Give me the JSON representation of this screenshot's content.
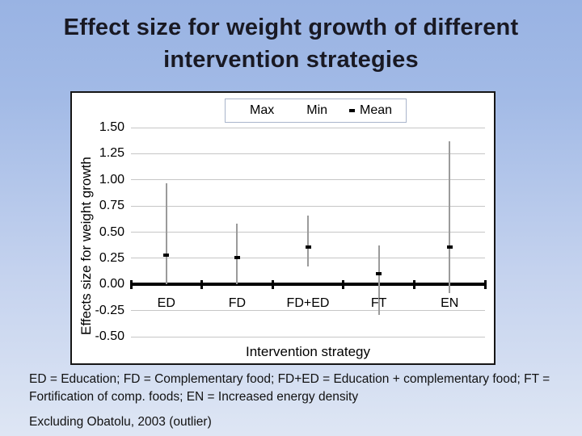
{
  "slide": {
    "title": "Effect size for weight growth of different intervention strategies",
    "footnote_abbreviations": "ED = Education; FD = Complementary food; FD+ED = Education + complementary food; FT = Fortification of comp. foods; EN = Increased energy density",
    "footnote_exclusion": "Excluding Obatolu, 2003 (outlier)"
  },
  "colors": {
    "slide_background_top": "#99b3e3",
    "slide_background_bottom": "#dee6f4",
    "title_text": "#191923",
    "chart_background": "#ffffff",
    "chart_border": "#161616",
    "gridline": "#c6c6c6",
    "hilo_line": "#9b9b9b",
    "axis_and_text": "#000000"
  },
  "chart_data": {
    "type": "hilo-range",
    "categories": [
      "ED",
      "FD",
      "FD+ED",
      "FT",
      "EN"
    ],
    "series": [
      {
        "name": "Max",
        "values": [
          0.97,
          0.58,
          0.66,
          0.37,
          1.37
        ]
      },
      {
        "name": "Min",
        "values": [
          0.0,
          0.0,
          0.17,
          -0.29,
          -0.08
        ]
      },
      {
        "name": "Mean",
        "values": [
          0.28,
          0.26,
          0.36,
          0.1,
          0.36
        ]
      }
    ],
    "xlabel": "Intervention strategy",
    "ylabel": "Effects size for weight growth",
    "ylim": [
      -0.5,
      1.5
    ],
    "ytick_step": 0.25,
    "ytick_labels": [
      "1.50",
      "1.25",
      "1.00",
      "0.75",
      "0.50",
      "0.25",
      "0.00",
      "-0.25",
      "-0.50"
    ],
    "grid": true,
    "legend": {
      "position": "top-center",
      "entries": [
        {
          "label": "Max",
          "marker": "none"
        },
        {
          "label": "Min",
          "marker": "none"
        },
        {
          "label": "Mean",
          "marker": "square"
        }
      ]
    }
  }
}
